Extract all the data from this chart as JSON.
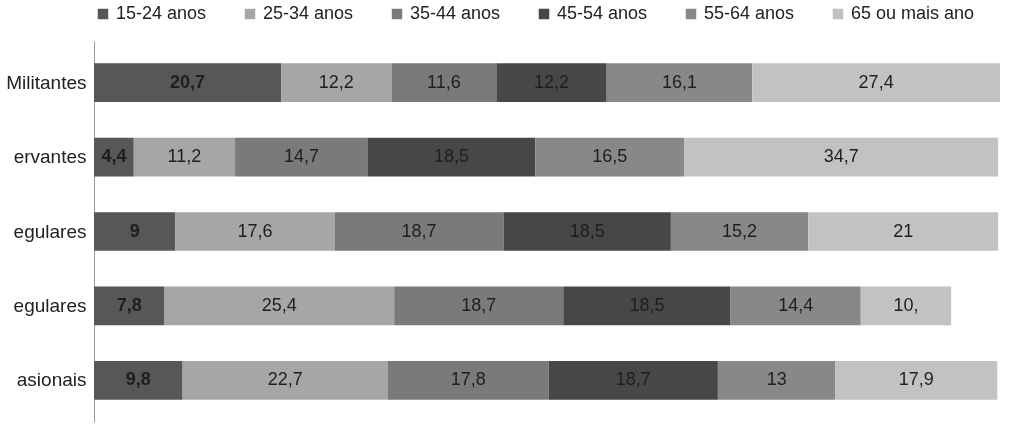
{
  "chart_data": {
    "type": "bar",
    "orientation": "horizontal",
    "stacked": true,
    "legend": "top",
    "categories": [
      "Militantes",
      "ervantes",
      "egulares",
      "egulares",
      "asionais"
    ],
    "series": [
      {
        "name": "15-24 anos",
        "color": "#575757",
        "values": [
          20.7,
          4.4,
          9,
          7.8,
          9.8
        ],
        "value_labels": [
          "20,7",
          "4,4",
          "9",
          "7,8",
          "9,8"
        ]
      },
      {
        "name": "25-34 anos",
        "color": "#a6a6a6",
        "values": [
          12.2,
          11.2,
          17.6,
          25.4,
          22.7
        ],
        "value_labels": [
          "12,2",
          "11,2",
          "17,6",
          "25,4",
          "22,7"
        ]
      },
      {
        "name": "35-44 anos",
        "color": "#7a7a7a",
        "values": [
          11.6,
          14.7,
          18.7,
          18.7,
          17.8
        ],
        "value_labels": [
          "11,6",
          "14,7",
          "18,7",
          "18,7",
          "17,8"
        ]
      },
      {
        "name": "45-54 anos",
        "color": "#474747",
        "values": [
          12.2,
          18.5,
          18.5,
          18.5,
          18.7
        ],
        "value_labels": [
          "12,2",
          "18,5",
          "18,5",
          "18,5",
          "18,7"
        ]
      },
      {
        "name": "55-64 anos",
        "color": "#888888",
        "values": [
          16.1,
          16.5,
          15.2,
          14.4,
          13
        ],
        "value_labels": [
          "16,1",
          "16,5",
          "15,2",
          "14,4",
          "13"
        ]
      },
      {
        "name": "65 ou mais ano",
        "color": "#c2c2c2",
        "values": [
          27.4,
          34.7,
          21,
          10,
          17.9
        ],
        "value_labels": [
          "27,4",
          "34,7",
          "21",
          "10,",
          "17,9"
        ]
      }
    ]
  }
}
